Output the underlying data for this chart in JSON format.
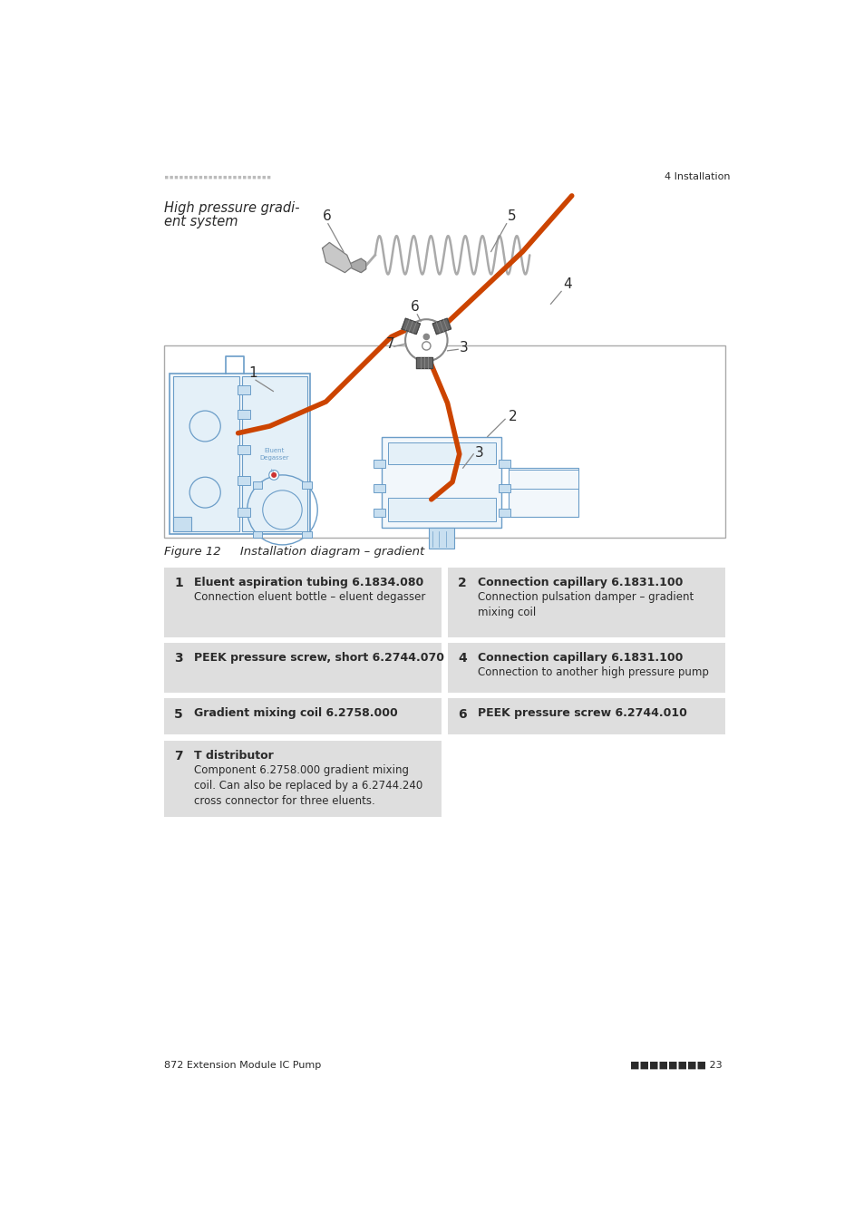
{
  "bg_color": "#ffffff",
  "text_color": "#2a2a2a",
  "blue_color": "#6b9dc8",
  "blue_light": "#ddeeff",
  "blue_mid": "#c8dff0",
  "orange_color": "#cc4400",
  "dark_gray": "#555555",
  "mid_gray": "#888888",
  "light_gray": "#bbbbbb",
  "table_bg": "#dedede",
  "header_marks": "■ ■ ■ ■ ■ ■ ■ ■ ■ ■ ■ ■ ■ ■ ■ ■ ■ ■ ■ ■ ■",
  "header_right": "4 Installation",
  "italic_line1": "High pressure gradi-",
  "italic_line2": "ent system",
  "figure_caption": "Figure 12     Installation diagram – gradient",
  "footer_left": "872 Extension Module IC Pump",
  "footer_right_squares": "■■■■■■■■ 23",
  "items": [
    {
      "num": "1",
      "bold": "Eluent aspiration tubing 6.1834.080",
      "normal": "Connection eluent bottle – eluent degasser",
      "col": 0,
      "row": 0
    },
    {
      "num": "2",
      "bold": "Connection capillary 6.1831.100",
      "normal": "Connection pulsation damper – gradient\nmixing coil",
      "col": 1,
      "row": 0
    },
    {
      "num": "3",
      "bold": "PEEK pressure screw, short 6.2744.070",
      "normal": "",
      "col": 0,
      "row": 1
    },
    {
      "num": "4",
      "bold": "Connection capillary 6.1831.100",
      "normal": "Connection to another high pressure pump",
      "col": 1,
      "row": 1
    },
    {
      "num": "5",
      "bold": "Gradient mixing coil 6.2758.000",
      "normal": "",
      "col": 0,
      "row": 2
    },
    {
      "num": "6",
      "bold": "PEEK pressure screw 6.2744.010",
      "normal": "",
      "col": 1,
      "row": 2
    },
    {
      "num": "7",
      "bold": "T distributor",
      "normal": "Component 6.2758.000 gradient mixing\ncoil. Can also be replaced by a 6.2744.240\ncross connector for three eluents.",
      "col": 0,
      "row": 3
    }
  ]
}
